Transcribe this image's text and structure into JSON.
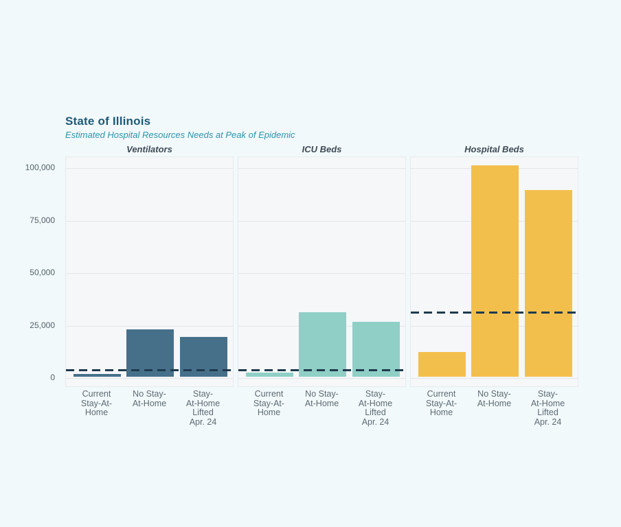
{
  "page": {
    "background_color": "#f2f9fb",
    "panel_background_color": "#f5f7f9",
    "gridline_color": "#e3e7ea",
    "capacity_line_color": "#1e3a4d",
    "title_color": "#1d5a78",
    "subtitle_color": "#2a93ad"
  },
  "chart_data": {
    "type": "bar",
    "title": "State of Illinois",
    "subtitle": "Estimated Hospital Resources Needs at Peak of Epidemic",
    "layout": "three faceted single-series bar panels sharing one y axis, horizontal grid on, no legend, dashed horizontal capacity reference line per panel",
    "categories": [
      "Current Stay-At-Home",
      "No Stay-At-Home",
      "Stay-At-Home Lifted Apr. 24"
    ],
    "category_tick_lines": [
      "Current\nStay-At-\nHome",
      "No Stay-\nAt-Home",
      "Stay-\nAt-Home\nLifted\nApr. 24"
    ],
    "ylim": [
      0,
      105000
    ],
    "grid_values": [
      0,
      25000,
      50000,
      75000,
      100000
    ],
    "y_tick_labels": [
      "0",
      "25,000",
      "50,000",
      "75,000",
      "100,000"
    ],
    "panels": [
      {
        "title": "Ventilators",
        "bar_color": "#46708a",
        "values": [
          1300,
          22400,
          19000
        ],
        "capacity_dashed_line_value": 3700
      },
      {
        "title": "ICU Beds",
        "bar_color": "#8fcfc6",
        "values": [
          2000,
          30700,
          26100
        ],
        "capacity_dashed_line_value": 3700
      },
      {
        "title": "Hospital Beds",
        "bar_color": "#f3bf4c",
        "values": [
          11800,
          100700,
          88900
        ],
        "capacity_dashed_line_value": 31100
      }
    ]
  }
}
